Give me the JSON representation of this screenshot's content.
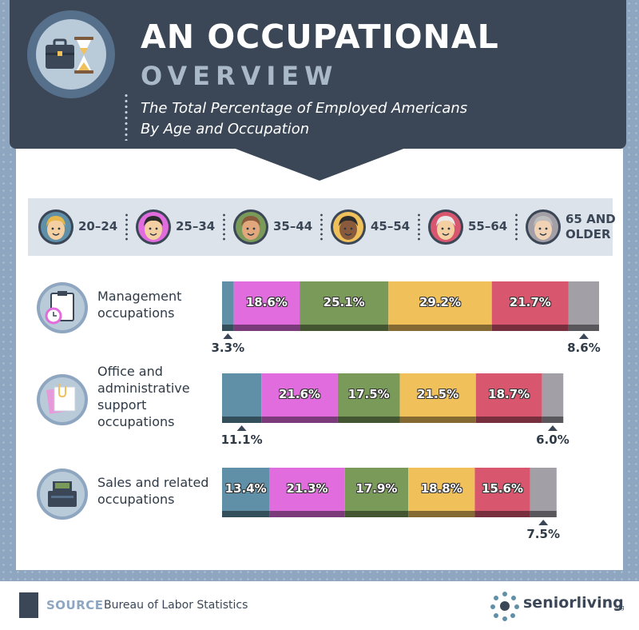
{
  "header": {
    "title": "AN OCCUPATIONAL",
    "subtitle": "OVERVIEW",
    "description_line1": "The Total Percentage of Employed Americans",
    "description_line2": "By Age and Occupation"
  },
  "legend": {
    "items": [
      {
        "label_line1": "20–24",
        "label_line2": "",
        "color": "#5f90a8",
        "icon": "young-woman-avatar-icon"
      },
      {
        "label_line1": "25–34",
        "label_line2": "",
        "color": "#e06cdd",
        "icon": "young-man-avatar-icon"
      },
      {
        "label_line1": "35–44",
        "label_line2": "",
        "color": "#7a9a59",
        "icon": "woman-avatar-icon"
      },
      {
        "label_line1": "45–54",
        "label_line2": "",
        "color": "#f0c05b",
        "icon": "man-avatar-icon"
      },
      {
        "label_line1": "55–64",
        "label_line2": "",
        "color": "#d9566f",
        "icon": "older-woman-avatar-icon"
      },
      {
        "label_line1": "65 AND",
        "label_line2": "OLDER",
        "color": "#a39fa7",
        "icon": "older-man-avatar-icon"
      }
    ]
  },
  "chart_data": {
    "type": "bar",
    "orientation": "horizontal",
    "stacked": true,
    "categories": [
      "Management occupations",
      "Office and administrative support occupations",
      "Sales and related occupations"
    ],
    "category_label_lines": [
      [
        "Management",
        "occupations"
      ],
      [
        "Office and",
        "administrative",
        "support",
        "occupations"
      ],
      [
        "Sales and related",
        "occupations"
      ]
    ],
    "category_icons": [
      "clipboard-clock-icon",
      "papers-clip-icon",
      "cash-register-icon"
    ],
    "series": [
      {
        "name": "20–24",
        "values": [
          3.3,
          11.1,
          13.4
        ]
      },
      {
        "name": "25–34",
        "values": [
          18.6,
          21.6,
          21.3
        ]
      },
      {
        "name": "35–44",
        "values": [
          25.1,
          17.5,
          17.9
        ]
      },
      {
        "name": "45–54",
        "values": [
          29.2,
          21.5,
          18.8
        ]
      },
      {
        "name": "55–64",
        "values": [
          21.7,
          18.7,
          15.6
        ]
      },
      {
        "name": "65 AND OLDER",
        "values": [
          8.6,
          6.0,
          7.5
        ]
      }
    ],
    "value_labels": [
      [
        "3.3%",
        "18.6%",
        "25.1%",
        "29.2%",
        "21.7%",
        "8.6%"
      ],
      [
        "11.1%",
        "21.6%",
        "17.5%",
        "21.5%",
        "18.7%",
        "6.0%"
      ],
      [
        "13.4%",
        "21.3%",
        "17.9%",
        "18.8%",
        "15.6%",
        "7.5%"
      ]
    ],
    "xlim": [
      0,
      106.5
    ]
  },
  "footer": {
    "source_label": "SOURCE",
    "source_text": "Bureau of Labor Statistics",
    "brand": "seniorliving",
    "brand_suffix": ".org"
  }
}
